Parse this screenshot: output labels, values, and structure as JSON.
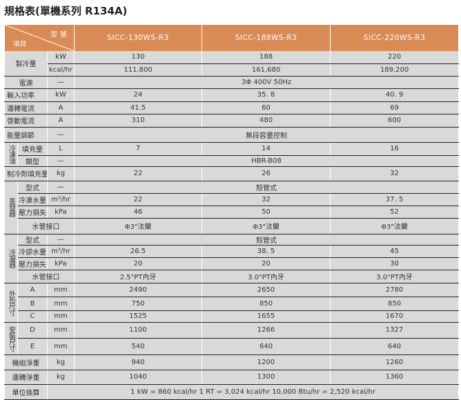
{
  "title": "規格表(單機系列 R134A)",
  "header": {
    "model_label": "型 號",
    "item_label": "項目",
    "models": [
      "SICC-130WS-R3",
      "SICC-188WS-R3",
      "SICC-220WS-R3"
    ]
  },
  "colors": {
    "header_bg": "#d98b55",
    "cell_bg": "#d9d9d9"
  },
  "rows": [
    {
      "group": "製冷量",
      "group_rows": 2,
      "unit": "kW",
      "values": [
        "130",
        "188",
        "220"
      ]
    },
    {
      "unit": "kcal/hr",
      "values": [
        "111,800",
        "161,680",
        "189,200"
      ]
    },
    {
      "group": "電源",
      "unit": "—",
      "values": [
        "3Φ 400V 50Hz"
      ]
    },
    {
      "group": "輸入功率",
      "unit": "kW",
      "values": [
        "24",
        "35. 8",
        "40. 9"
      ]
    },
    {
      "group": "運轉電流",
      "unit": "A",
      "values": [
        "41.5",
        "60",
        "69"
      ]
    },
    {
      "group": "啓動電流",
      "unit": "A",
      "values": [
        "310",
        "480",
        "600"
      ]
    },
    {
      "group": "能量調節",
      "unit": "—",
      "values": [
        "無段容量控制"
      ]
    },
    {
      "vgroup": "冷凍油",
      "group_rows": 2,
      "sub": "填充量",
      "unit": "L",
      "values": [
        "7",
        "14",
        "16"
      ]
    },
    {
      "sub": "類型",
      "unit": "—",
      "values": [
        "HBR-B08"
      ]
    },
    {
      "group": "制冷劑填充量",
      "unit": "kg",
      "values": [
        "22",
        "26",
        "32"
      ]
    },
    {
      "vgroup": "蒸發器",
      "group_rows": 4,
      "sub": "型式",
      "unit": "—",
      "values": [
        "殼管式"
      ]
    },
    {
      "sub": "冷凍水量",
      "unit": "m³/hr",
      "values": [
        "22",
        "32",
        "37. 5"
      ]
    },
    {
      "sub": "壓力損失",
      "unit": "kPa",
      "values": [
        "46",
        "50",
        "52"
      ]
    },
    {
      "sub": "水管接口",
      "values": [
        "Φ3\"法蘭",
        "Φ3\"法蘭",
        "Φ3\"法蘭"
      ]
    },
    {
      "vgroup": "冷凝器",
      "group_rows": 4,
      "sub": "型式",
      "unit": "—",
      "values": [
        "殼管式"
      ]
    },
    {
      "sub": "冷卻水量",
      "unit": "m³/hr",
      "values": [
        "26.5",
        "38. 5",
        "45"
      ]
    },
    {
      "sub": "壓力損失",
      "unit": "kPa",
      "values": [
        "20",
        "20",
        "30"
      ]
    },
    {
      "sub": "水管接口",
      "values": [
        "2.5\"PT內牙",
        "3.0\"PT內牙",
        "3.0\"PT內牙"
      ]
    },
    {
      "vgroup": "外形尺寸",
      "group_rows": 3,
      "sub": "A",
      "unit": "mm",
      "values": [
        "2490",
        "2650",
        "2780"
      ]
    },
    {
      "sub": "B",
      "unit": "mm",
      "values": [
        "750",
        "850",
        "850"
      ]
    },
    {
      "sub": "C",
      "unit": "mm",
      "values": [
        "1525",
        "1655",
        "1670"
      ]
    },
    {
      "vgroup": "安裝尺寸",
      "group_rows": 2,
      "sub": "D",
      "unit": "mm",
      "values": [
        "1100",
        "1266",
        "1327"
      ]
    },
    {
      "sub": "E",
      "unit": "mm",
      "values": [
        "540",
        "640",
        "640"
      ]
    },
    {
      "group": "機組淨重",
      "centered": true,
      "unit": "kg",
      "values": [
        "940",
        "1200",
        "1260"
      ]
    },
    {
      "group": "運轉淨重",
      "centered": true,
      "unit": "kg",
      "values": [
        "1040",
        "1300",
        "1360"
      ]
    },
    {
      "group": "單位換算",
      "centered": true,
      "note": "1 kW = 860 kcal/hr      1 RT = 3,024 kcal/hr      10,000 Btu/hr = 2,520 kcal/hr"
    }
  ]
}
